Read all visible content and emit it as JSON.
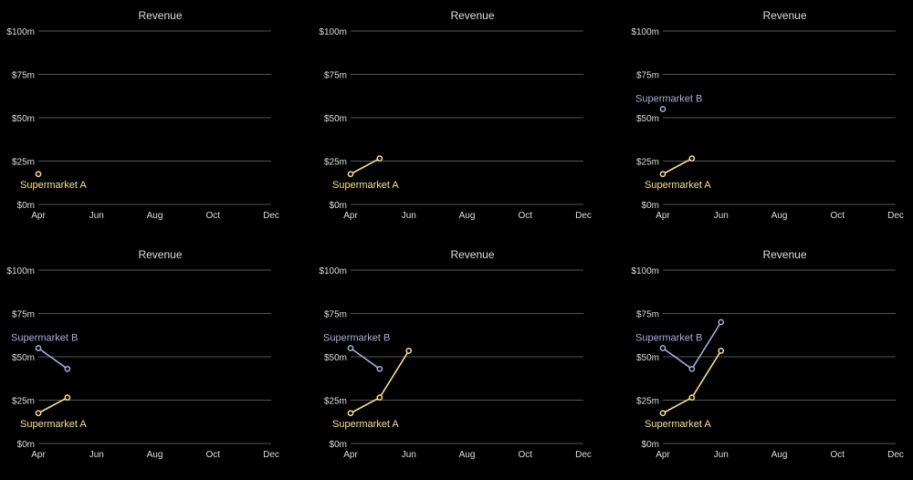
{
  "colors": {
    "background": "#000000",
    "gridline": "#555555",
    "text": "#dddddd",
    "series_a": "#f7e08e",
    "series_b": "#a2b1dc"
  },
  "chart_data": [
    {
      "type": "line",
      "title": "Revenue",
      "x_ticks": [
        "Apr",
        "Jun",
        "Aug",
        "Oct",
        "Dec"
      ],
      "y_ticks": [
        "$0m",
        "$25m",
        "$50m",
        "$75m",
        "$100m"
      ],
      "ylim": [
        0,
        100
      ],
      "grid": true,
      "series": [
        {
          "name": "Supermarket A",
          "points": [
            {
              "x": "Apr",
              "y": 17.5
            }
          ]
        }
      ]
    },
    {
      "type": "line",
      "title": "Revenue",
      "x_ticks": [
        "Apr",
        "Jun",
        "Aug",
        "Oct",
        "Dec"
      ],
      "y_ticks": [
        "$0m",
        "$25m",
        "$50m",
        "$75m",
        "$100m"
      ],
      "ylim": [
        0,
        100
      ],
      "grid": true,
      "series": [
        {
          "name": "Supermarket A",
          "points": [
            {
              "x": "Apr",
              "y": 17.5
            },
            {
              "x": "May",
              "y": 26.5
            }
          ]
        }
      ]
    },
    {
      "type": "line",
      "title": "Revenue",
      "x_ticks": [
        "Apr",
        "Jun",
        "Aug",
        "Oct",
        "Dec"
      ],
      "y_ticks": [
        "$0m",
        "$25m",
        "$50m",
        "$75m",
        "$100m"
      ],
      "ylim": [
        0,
        100
      ],
      "grid": true,
      "series": [
        {
          "name": "Supermarket A",
          "points": [
            {
              "x": "Apr",
              "y": 17.5
            },
            {
              "x": "May",
              "y": 26.5
            }
          ]
        },
        {
          "name": "Supermarket B",
          "points": [
            {
              "x": "Apr",
              "y": 55
            }
          ]
        }
      ]
    },
    {
      "type": "line",
      "title": "Revenue",
      "x_ticks": [
        "Apr",
        "Jun",
        "Aug",
        "Oct",
        "Dec"
      ],
      "y_ticks": [
        "$0m",
        "$25m",
        "$50m",
        "$75m",
        "$100m"
      ],
      "ylim": [
        0,
        100
      ],
      "grid": true,
      "series": [
        {
          "name": "Supermarket A",
          "points": [
            {
              "x": "Apr",
              "y": 17.5
            },
            {
              "x": "May",
              "y": 26.5
            }
          ]
        },
        {
          "name": "Supermarket B",
          "points": [
            {
              "x": "Apr",
              "y": 55
            },
            {
              "x": "May",
              "y": 43
            }
          ]
        }
      ]
    },
    {
      "type": "line",
      "title": "Revenue",
      "x_ticks": [
        "Apr",
        "Jun",
        "Aug",
        "Oct",
        "Dec"
      ],
      "y_ticks": [
        "$0m",
        "$25m",
        "$50m",
        "$75m",
        "$100m"
      ],
      "ylim": [
        0,
        100
      ],
      "grid": true,
      "series": [
        {
          "name": "Supermarket A",
          "points": [
            {
              "x": "Apr",
              "y": 17.5
            },
            {
              "x": "May",
              "y": 26.5
            },
            {
              "x": "Jun",
              "y": 53.5
            }
          ]
        },
        {
          "name": "Supermarket B",
          "points": [
            {
              "x": "Apr",
              "y": 55
            },
            {
              "x": "May",
              "y": 43
            }
          ]
        }
      ]
    },
    {
      "type": "line",
      "title": "Revenue",
      "x_ticks": [
        "Apr",
        "Jun",
        "Aug",
        "Oct",
        "Dec"
      ],
      "y_ticks": [
        "$0m",
        "$25m",
        "$50m",
        "$75m",
        "$100m"
      ],
      "ylim": [
        0,
        100
      ],
      "grid": true,
      "series": [
        {
          "name": "Supermarket A",
          "points": [
            {
              "x": "Apr",
              "y": 17.5
            },
            {
              "x": "May",
              "y": 26.5
            },
            {
              "x": "Jun",
              "y": 53.5
            }
          ]
        },
        {
          "name": "Supermarket B",
          "points": [
            {
              "x": "Apr",
              "y": 55
            },
            {
              "x": "May",
              "y": 43
            },
            {
              "x": "Jun",
              "y": 70
            }
          ]
        }
      ]
    }
  ]
}
